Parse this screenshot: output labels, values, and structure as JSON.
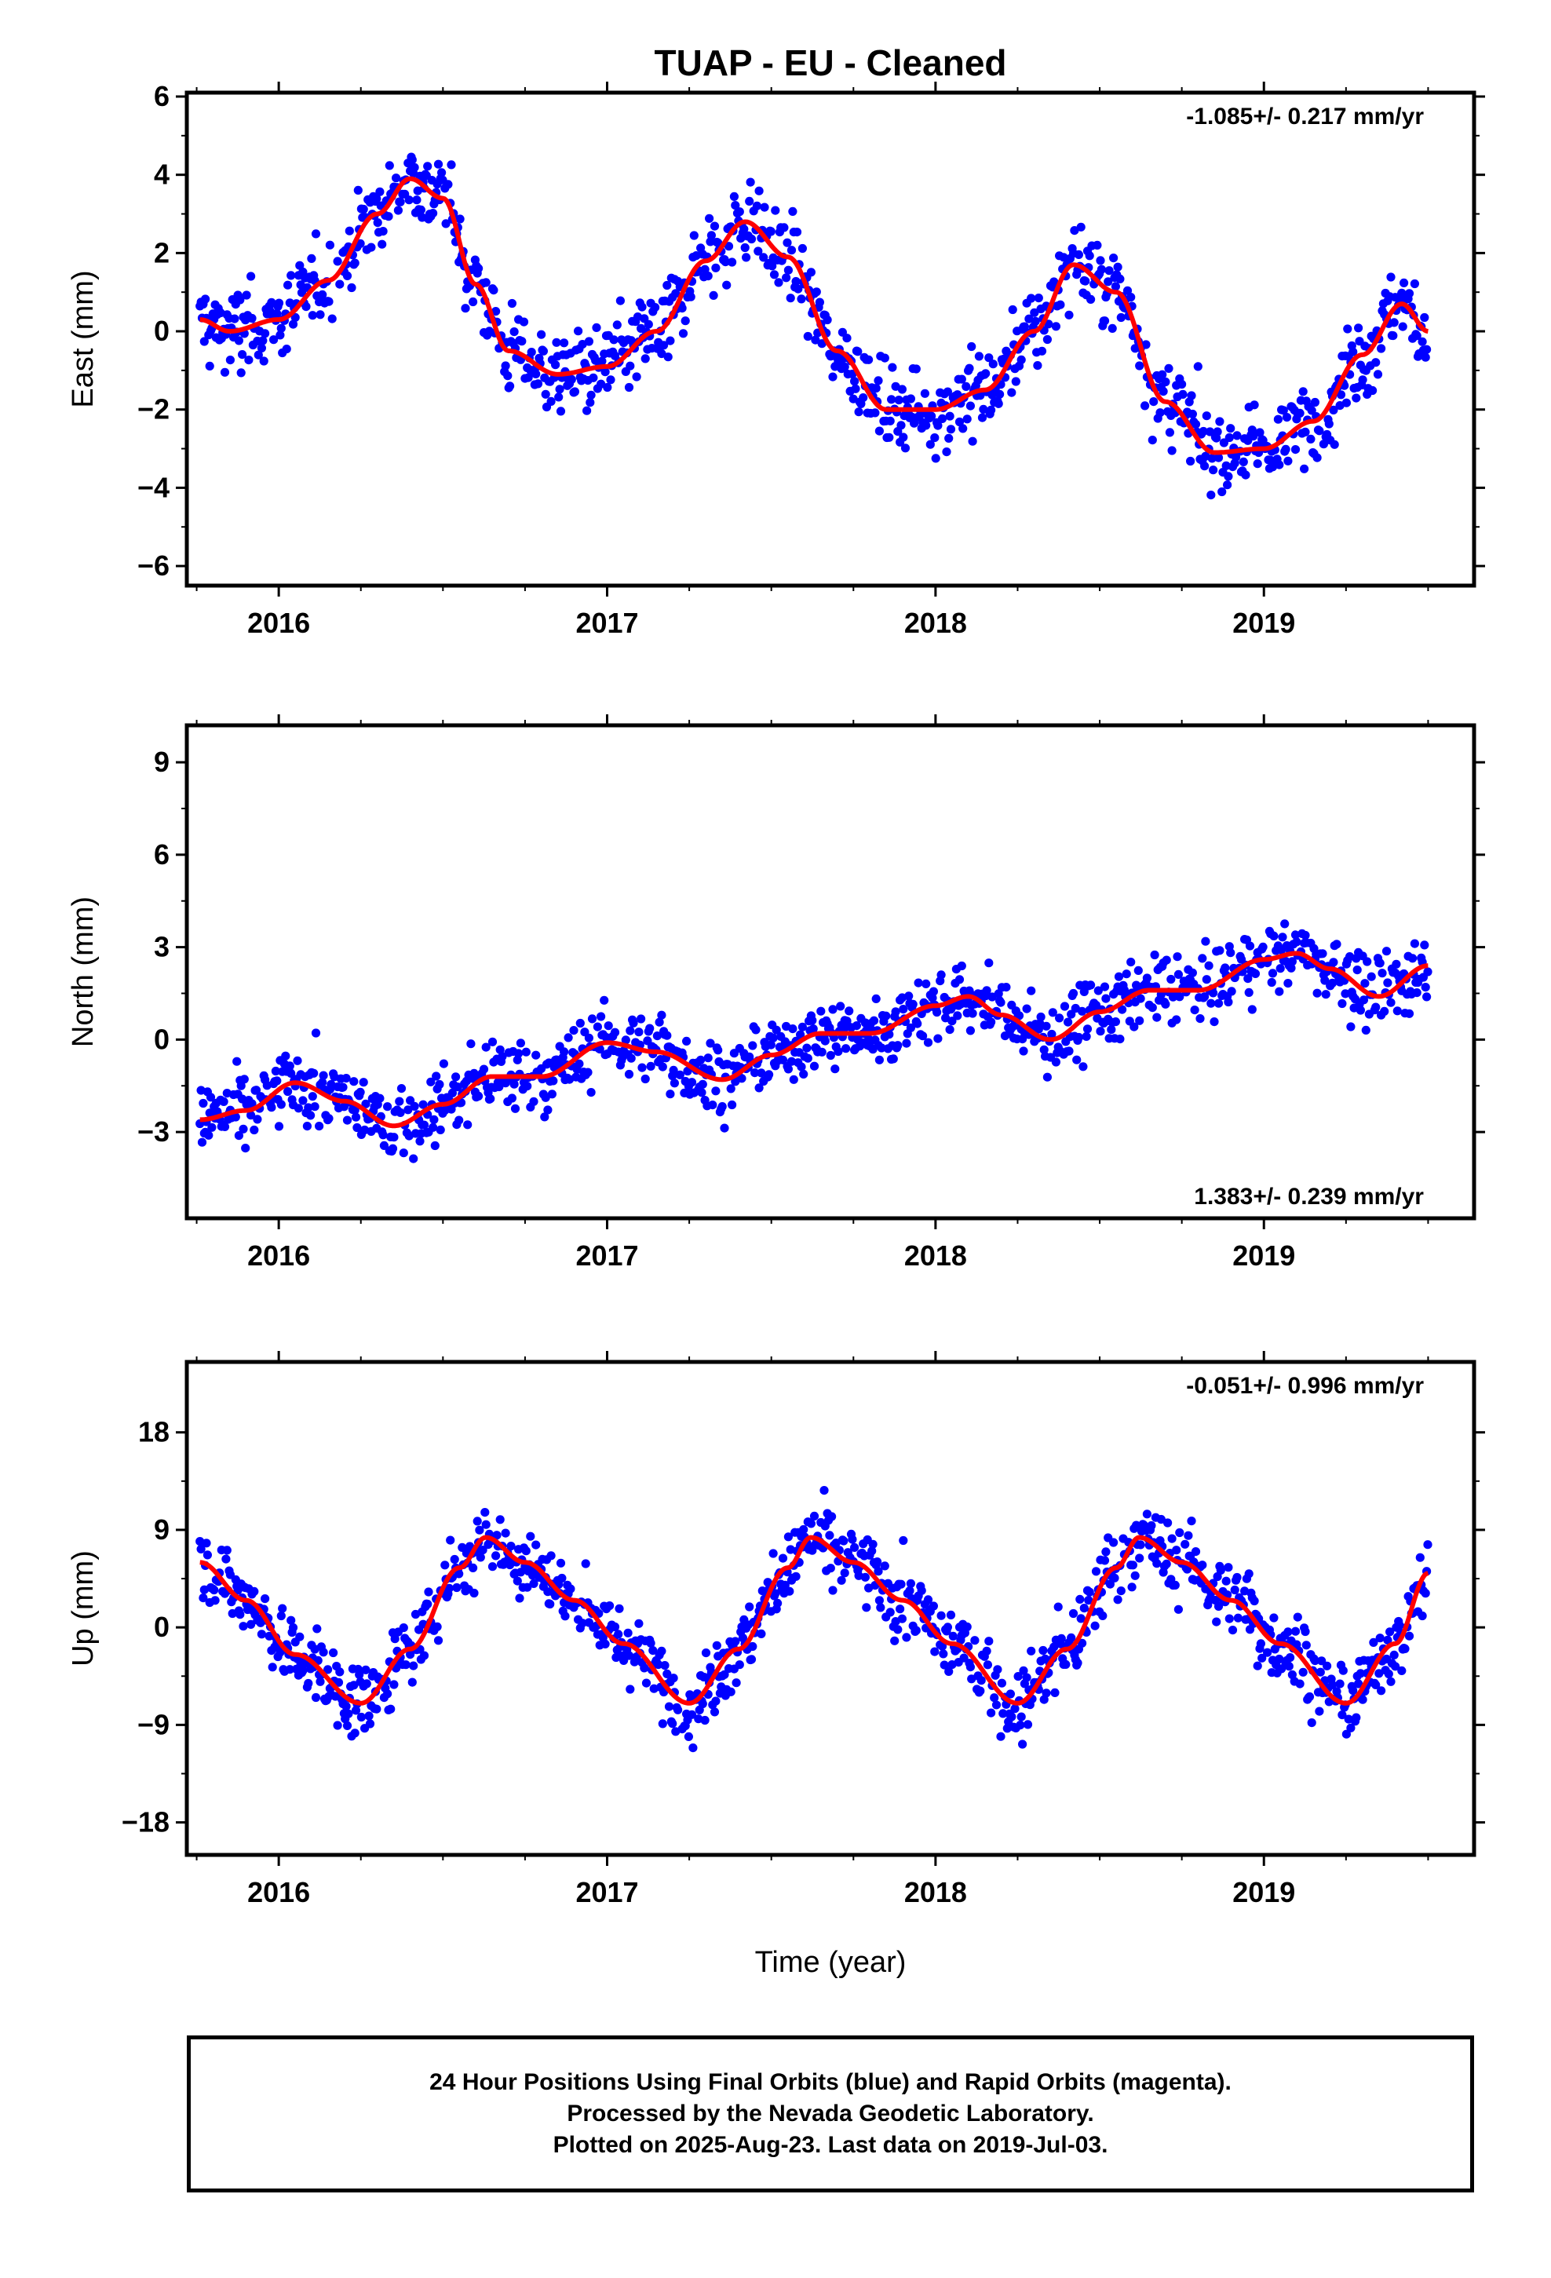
{
  "title": "TUAP  - EU - Cleaned",
  "xlabel": "Time (year)",
  "colors": {
    "points": "#0000ff",
    "fit": "#ff0000",
    "frame": "#000000"
  },
  "footer": {
    "line1": "24 Hour Positions Using Final Orbits (blue) and Rapid Orbits (magenta).",
    "line2": "Processed by the Nevada Geodetic Laboratory.",
    "line3": "Plotted on 2025-Aug-23. Last data on 2019-Jul-03."
  },
  "chart_data": [
    {
      "type": "scatter",
      "component": "east",
      "ylabel": "East (mm)",
      "xlim": [
        2015.72,
        2019.64
      ],
      "ylim": [
        -6.5,
        6.1
      ],
      "yticks": [
        -6,
        -4,
        -2,
        0,
        2,
        4,
        6
      ],
      "xticks": [
        2016,
        2017,
        2018,
        2019
      ],
      "rate_text": "-1.085+/- 0.217 mm/yr",
      "rate_position": "top-right",
      "grid": false,
      "x_start": 2015.76,
      "x_end": 2019.5,
      "fit_curve": {
        "x": [
          2015.76,
          2015.85,
          2016.0,
          2016.15,
          2016.3,
          2016.4,
          2016.5,
          2016.6,
          2016.7,
          2016.85,
          2017.0,
          2017.15,
          2017.3,
          2017.42,
          2017.55,
          2017.7,
          2017.85,
          2018.0,
          2018.15,
          2018.3,
          2018.42,
          2018.55,
          2018.7,
          2018.85,
          2019.0,
          2019.15,
          2019.3,
          2019.42,
          2019.5
        ],
        "y": [
          0.3,
          0.0,
          0.3,
          1.3,
          3.0,
          3.9,
          3.4,
          1.2,
          -0.5,
          -1.1,
          -0.9,
          0.0,
          1.8,
          2.8,
          1.9,
          -0.5,
          -2.0,
          -2.0,
          -1.5,
          0.0,
          1.7,
          1.0,
          -1.8,
          -3.1,
          -3.0,
          -2.3,
          -0.6,
          0.7,
          0.0
        ]
      },
      "scatter_spread": 1.0
    },
    {
      "type": "scatter",
      "component": "north",
      "ylabel": "North (mm)",
      "xlim": [
        2015.72,
        2019.64
      ],
      "ylim": [
        -5.8,
        10.2
      ],
      "yticks": [
        -3,
        0,
        3,
        6,
        9
      ],
      "xticks": [
        2016,
        2017,
        2018,
        2019
      ],
      "rate_text": "1.383+/- 0.239 mm/yr",
      "rate_position": "bottom-right",
      "grid": false,
      "x_start": 2015.76,
      "x_end": 2019.5,
      "fit_curve": {
        "x": [
          2015.76,
          2015.9,
          2016.05,
          2016.2,
          2016.35,
          2016.5,
          2016.65,
          2016.8,
          2017.0,
          2017.15,
          2017.35,
          2017.5,
          2017.65,
          2017.8,
          2018.0,
          2018.1,
          2018.2,
          2018.35,
          2018.5,
          2018.65,
          2018.8,
          2019.0,
          2019.1,
          2019.2,
          2019.35,
          2019.5
        ],
        "y": [
          -2.6,
          -2.3,
          -1.4,
          -2.0,
          -2.8,
          -2.1,
          -1.2,
          -1.2,
          -0.1,
          -0.4,
          -1.3,
          -0.5,
          0.2,
          0.2,
          1.1,
          1.4,
          0.8,
          0.0,
          0.9,
          1.6,
          1.6,
          2.6,
          2.8,
          2.3,
          1.4,
          2.4
        ]
      },
      "scatter_spread": 1.1
    },
    {
      "type": "scatter",
      "component": "up",
      "ylabel": "Up (mm)",
      "xlim": [
        2015.72,
        2019.64
      ],
      "ylim": [
        -21,
        24.5
      ],
      "yticks": [
        -18,
        -9,
        0,
        9,
        18
      ],
      "xticks": [
        2016,
        2017,
        2018,
        2019
      ],
      "rate_text": "-0.051+/- 0.996 mm/yr",
      "rate_position": "top-right",
      "grid": false,
      "x_start": 2015.76,
      "x_end": 2019.5,
      "fit_curve": {
        "x": [
          2015.76,
          2015.9,
          2016.05,
          2016.25,
          2016.4,
          2016.55,
          2016.63,
          2016.75,
          2016.9,
          2017.05,
          2017.25,
          2017.4,
          2017.55,
          2017.62,
          2017.75,
          2017.9,
          2018.05,
          2018.25,
          2018.4,
          2018.55,
          2018.62,
          2018.75,
          2018.9,
          2019.05,
          2019.25,
          2019.4,
          2019.5
        ],
        "y": [
          6.0,
          2.5,
          -2.5,
          -7.0,
          -2.0,
          5.5,
          8.3,
          6.0,
          2.5,
          -1.5,
          -7.0,
          -2.0,
          5.5,
          8.3,
          6.0,
          2.5,
          -1.5,
          -7.0,
          -2.0,
          5.5,
          8.3,
          6.0,
          2.5,
          -1.5,
          -7.0,
          -1.5,
          5.0
        ]
      },
      "scatter_spread": 3.3
    }
  ]
}
